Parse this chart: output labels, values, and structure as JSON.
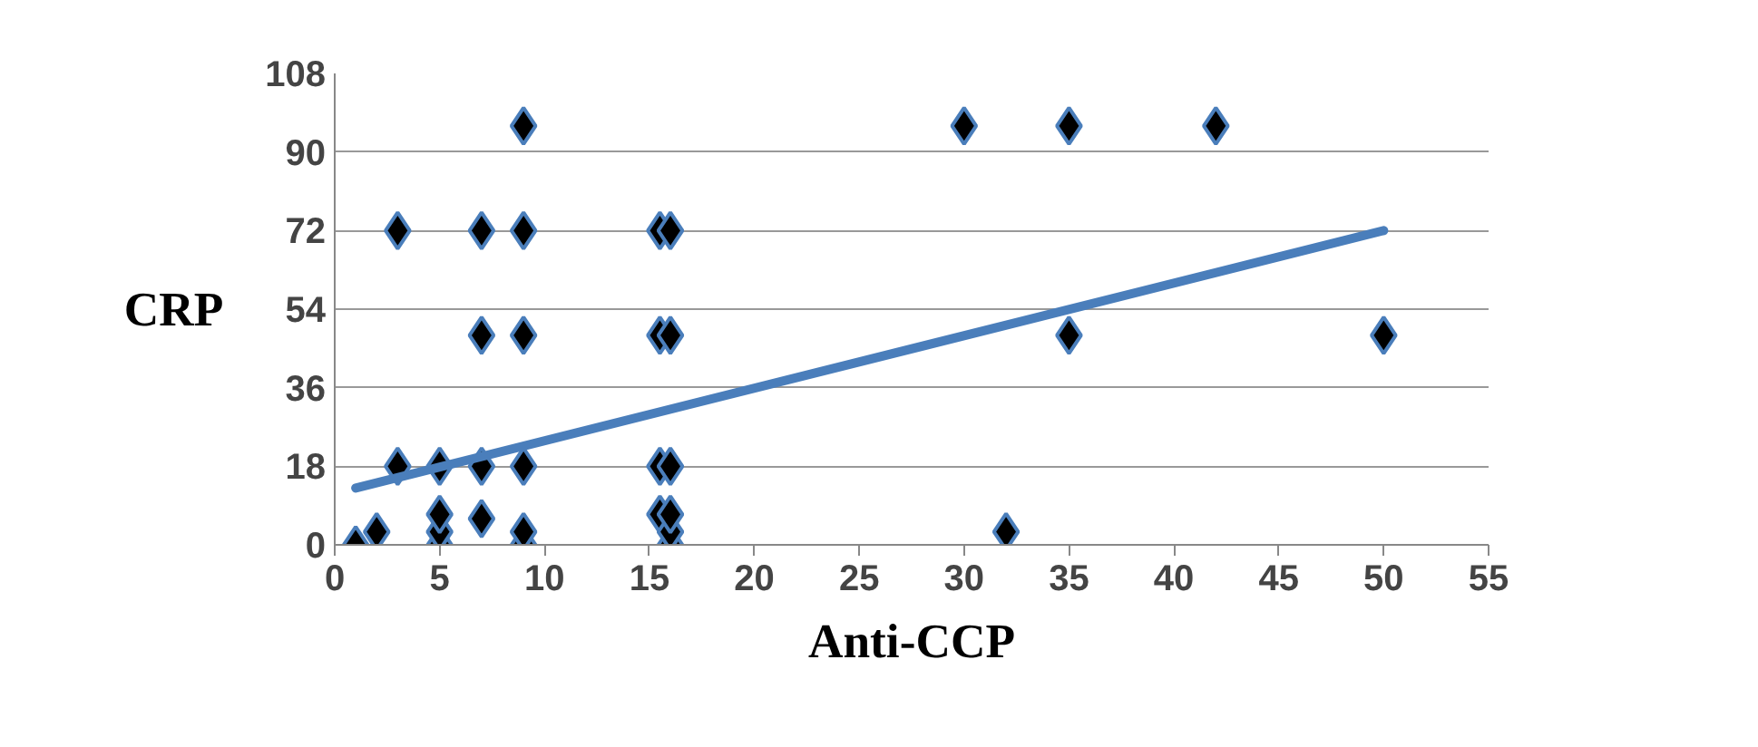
{
  "chart_data": {
    "type": "scatter",
    "xlabel": "Anti-CCP",
    "ylabel": "CRP",
    "xlim": [
      0,
      55
    ],
    "xticks": [
      0,
      5,
      10,
      15,
      20,
      25,
      30,
      35,
      40,
      45,
      50,
      55
    ],
    "ylim": [
      0,
      108
    ],
    "yticks": [
      0,
      18,
      36,
      54,
      72,
      90,
      108
    ],
    "grid": "y",
    "series": [
      {
        "color": "#000000",
        "marker": "diamond",
        "x": [
          1,
          2,
          3,
          3,
          5,
          5,
          5,
          5,
          7,
          7,
          7,
          7,
          9,
          9,
          9,
          9,
          9,
          9,
          15.5,
          15.5,
          15.5,
          15.5,
          16,
          16,
          16,
          16,
          16,
          16,
          30,
          32,
          35,
          35,
          42,
          50
        ],
        "values": [
          0,
          3,
          18,
          72,
          0,
          3,
          7,
          18,
          6,
          18,
          48,
          72,
          0,
          3,
          18,
          48,
          72,
          96,
          7,
          18,
          48,
          72,
          0,
          3,
          7,
          18,
          48,
          72,
          96,
          3,
          96,
          48,
          96,
          48
        ]
      },
      {
        "type": "line",
        "color": "#4a7ebb",
        "x": [
          1,
          50
        ],
        "values": [
          13,
          72
        ]
      }
    ]
  }
}
